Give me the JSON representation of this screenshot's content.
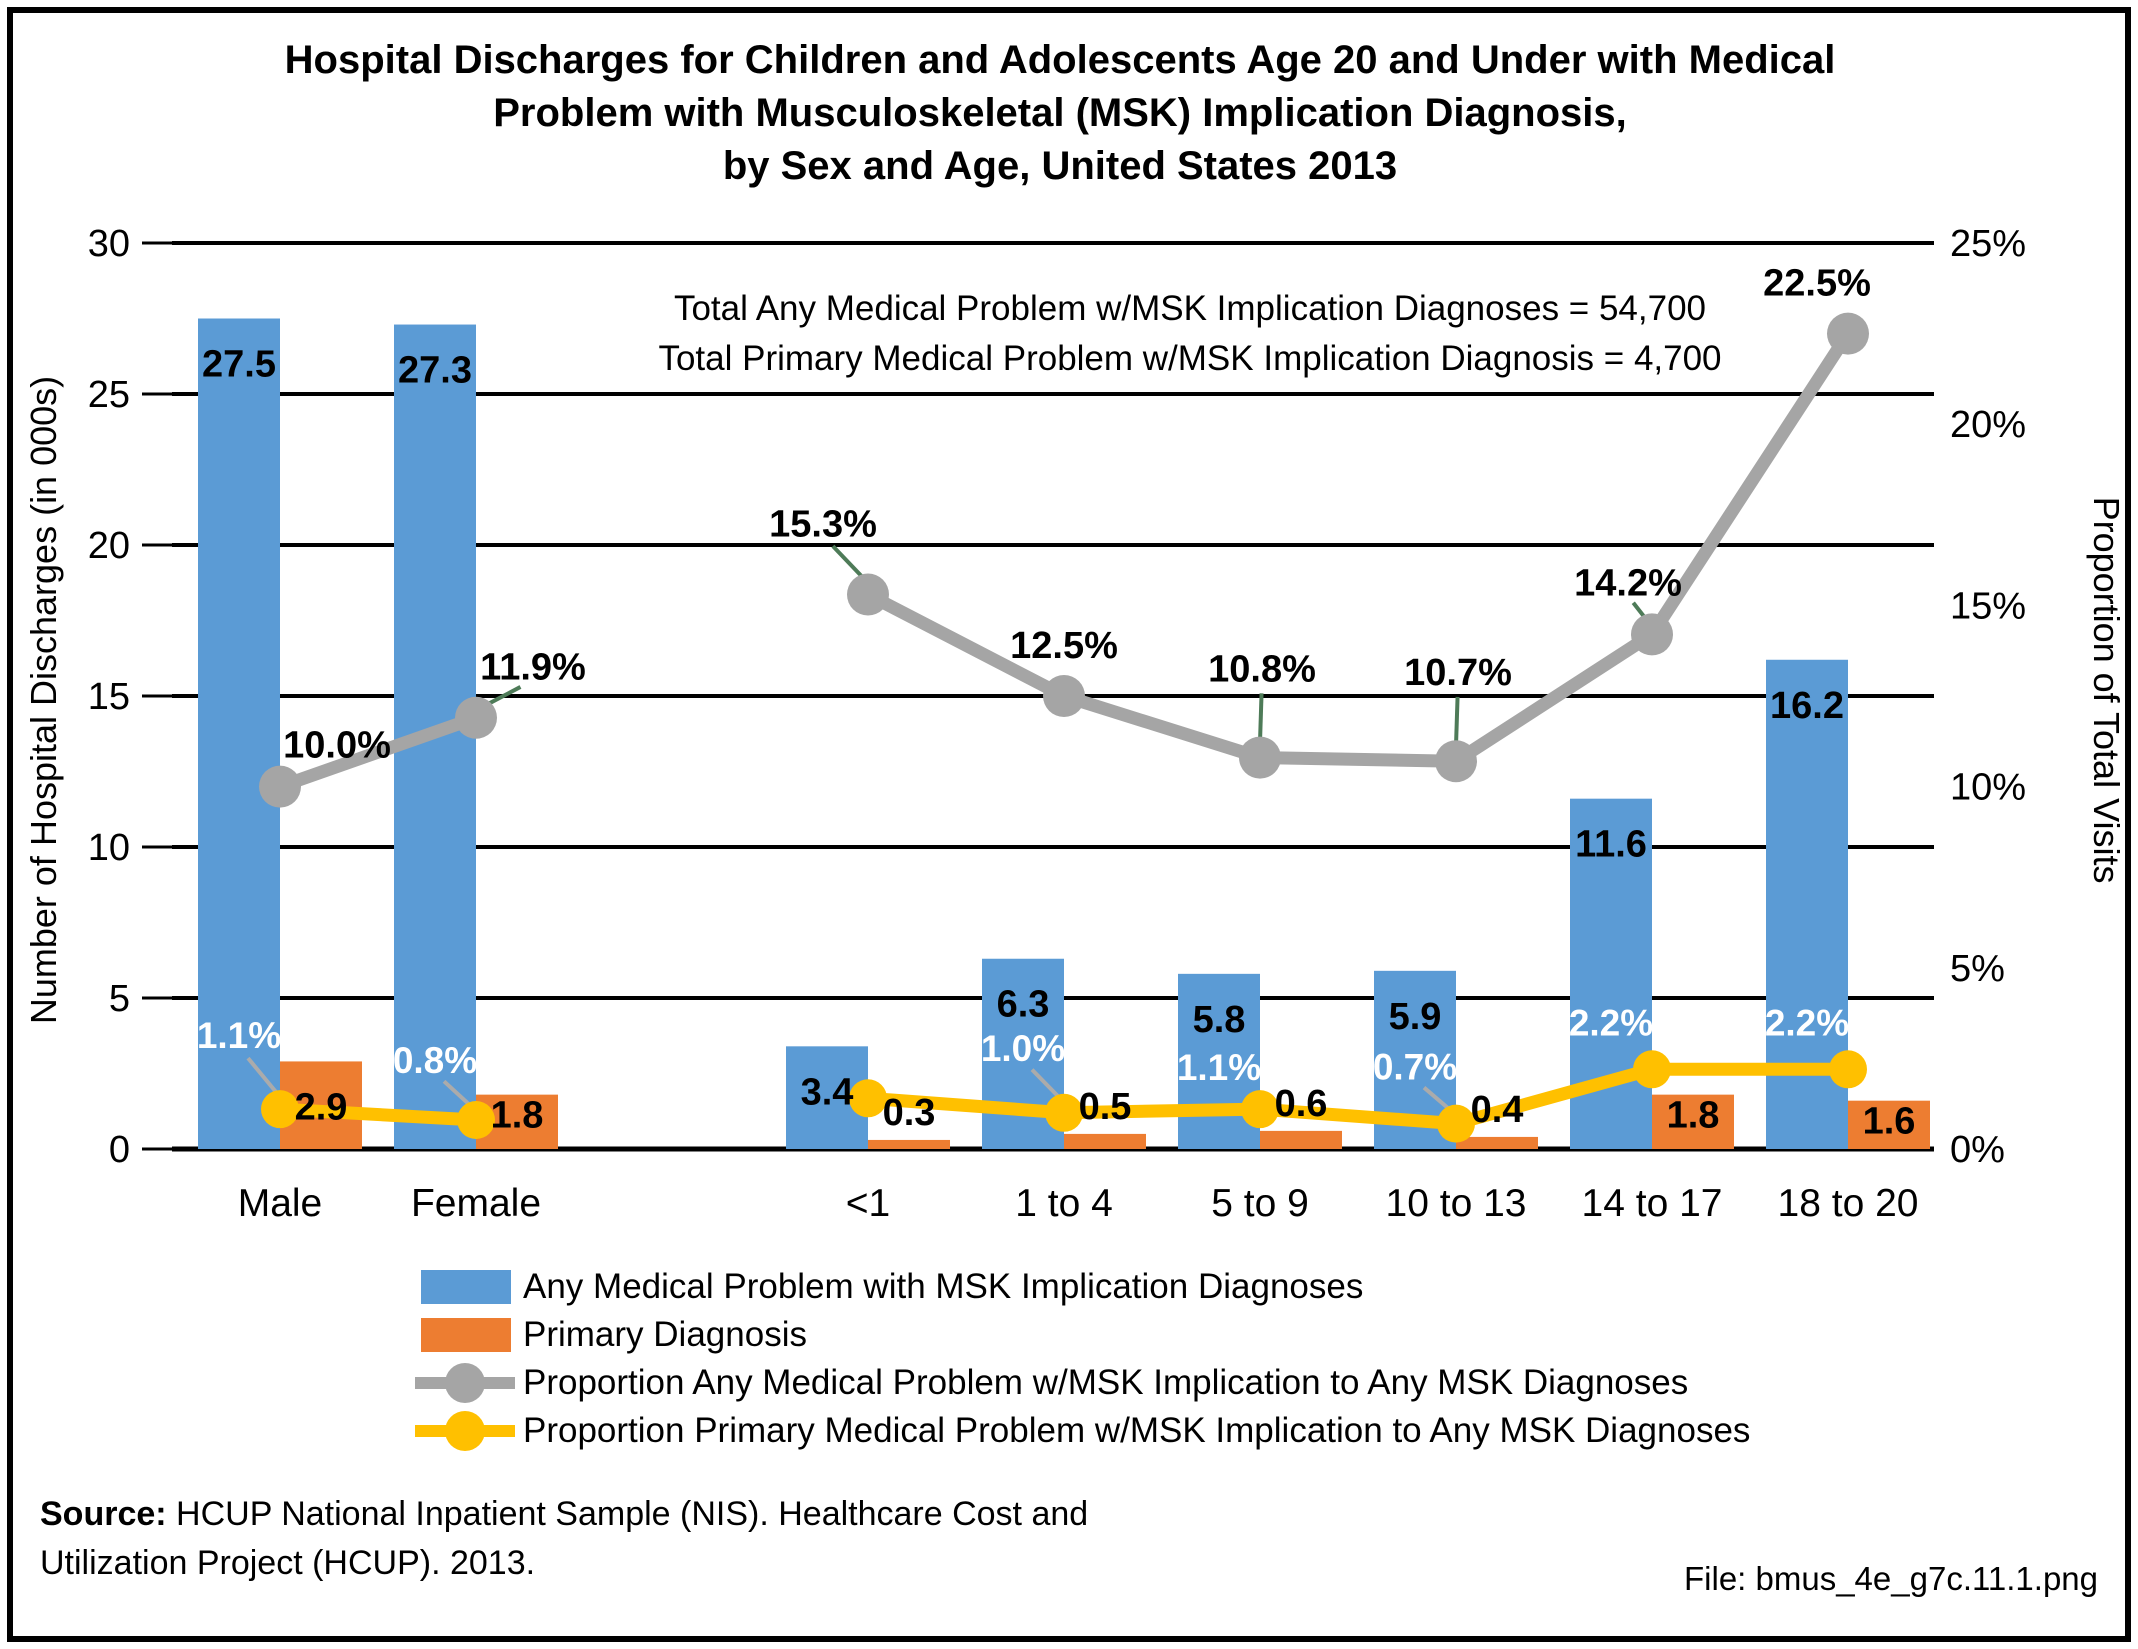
{
  "title": {
    "lines": [
      "Hospital Discharges for Children and Adolescents Age 20 and Under with Medical",
      "Problem with Musculoskeletal (MSK) Implication Diagnosis,",
      "by Sex and Age, United States 2013"
    ]
  },
  "annotation": {
    "lines": [
      "Total Any Medical Problem w/MSK Implication Diagnoses = 54,700",
      "Total Primary Medical Problem w/MSK Implication Diagnosis = 4,700"
    ]
  },
  "colors": {
    "blue": "#5B9BD5",
    "orange": "#ED7D31",
    "gray": "#A5A5A5",
    "yellow": "#FFC000",
    "leader_green": "#4E7B58",
    "leader_gray": "#ABABAB",
    "grid": "#000000"
  },
  "chart_data": {
    "type": "combo_bar_line",
    "categories": [
      "Male",
      "Female",
      "<1",
      "1 to 4",
      "5 to 9",
      "10 to 13",
      "14 to 17",
      "18 to 20"
    ],
    "gap_after_index": 1,
    "left_axis": {
      "label": "Number of Hospital Discharges (in 000s)",
      "ticks": [
        0,
        5,
        10,
        15,
        20,
        25,
        30
      ],
      "range": [
        0,
        30
      ]
    },
    "right_axis": {
      "label": "Proportion of Total Visits",
      "ticks": [
        "0%",
        "5%",
        "10%",
        "15%",
        "20%",
        "25%"
      ],
      "range": [
        0,
        25
      ]
    },
    "series": [
      {
        "name": "Any Medical Problem with MSK Implication Diagnoses",
        "type": "bar",
        "axis": "left",
        "color_key": "blue",
        "values": [
          27.5,
          27.3,
          3.4,
          6.3,
          5.8,
          5.9,
          11.6,
          16.2
        ],
        "labels": [
          "27.5",
          "27.3",
          "3.4",
          "6.3",
          "5.8",
          "5.9",
          "11.6",
          "16.2"
        ]
      },
      {
        "name": "Primary Diagnosis",
        "type": "bar",
        "axis": "left",
        "color_key": "orange",
        "values": [
          2.9,
          1.8,
          0.3,
          0.5,
          0.6,
          0.4,
          1.8,
          1.6
        ],
        "labels": [
          "2.9",
          "1.8",
          "0.3",
          "0.5",
          "0.6",
          "0.4",
          "1.8",
          "1.6"
        ]
      },
      {
        "name": "Proportion Any Medical Problem w/MSK Implication to Any MSK Diagnoses",
        "type": "line",
        "axis": "right",
        "color_key": "gray",
        "values": [
          10.0,
          11.9,
          15.3,
          12.5,
          10.8,
          10.7,
          14.2,
          22.5
        ],
        "labels": [
          "10.0%",
          "11.9%",
          "15.3%",
          "12.5%",
          "10.8%",
          "10.7%",
          "14.2%",
          "22.5%"
        ],
        "label_leader": [
          false,
          true,
          true,
          false,
          true,
          true,
          true,
          false
        ],
        "line_break_after_index": 1
      },
      {
        "name": "Proportion Primary Medical Problem w/MSK Implication to Any MSK Diagnoses",
        "type": "line",
        "axis": "right",
        "color_key": "yellow",
        "values": [
          1.1,
          0.8,
          1.4,
          1.0,
          1.1,
          0.7,
          2.2,
          2.2
        ],
        "labels": [
          "1.1%",
          "0.8%",
          "",
          "1.0%",
          "1.1%",
          "0.7%",
          "2.2%",
          "2.2%"
        ],
        "label_leader": [
          true,
          true,
          false,
          true,
          false,
          true,
          false,
          false
        ],
        "line_break_after_index": 1
      }
    ]
  },
  "legend": {
    "items": [
      {
        "label": "Any Medical Problem with MSK Implication Diagnoses",
        "type": "bar",
        "color_key": "blue"
      },
      {
        "label": "Primary Diagnosis",
        "type": "bar",
        "color_key": "orange"
      },
      {
        "label": "Proportion Any Medical Problem w/MSK Implication to Any MSK Diagnoses",
        "type": "line",
        "color_key": "gray"
      },
      {
        "label": "Proportion Primary Medical Problem w/MSK Implication to Any MSK Diagnoses",
        "type": "line",
        "color_key": "yellow"
      }
    ]
  },
  "source": {
    "label": "Source:",
    "line1": " HCUP National Inpatient Sample (NIS). Healthcare Cost and",
    "line2": "Utilization Project (HCUP). 2013."
  },
  "file_label": "File: bmus_4e_g7c.11.1.png"
}
